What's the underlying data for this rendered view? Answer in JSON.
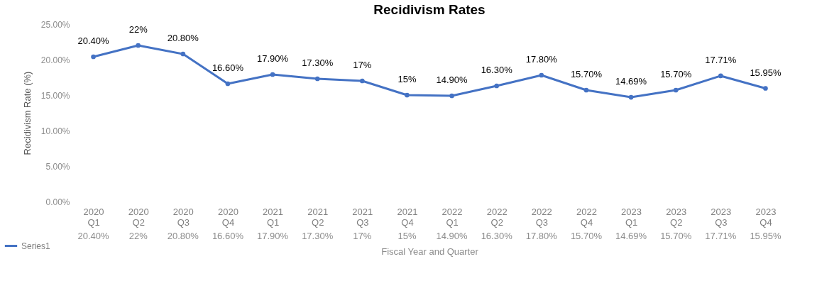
{
  "chart_data": {
    "type": "line",
    "title": "Recidivism Rates",
    "xlabel": "Fiscal Year and Quarter",
    "ylabel": "Recidivism Rate (%)",
    "categories": [
      "2020 Q1",
      "2020 Q2",
      "2020 Q3",
      "2020 Q4",
      "2021 Q1",
      "2021 Q2",
      "2021 Q3",
      "2021 Q4",
      "2022 Q1",
      "2022 Q2",
      "2022 Q3",
      "2022 Q4",
      "2023 Q1",
      "2023 Q2",
      "2023 Q3",
      "2023 Q4"
    ],
    "series": [
      {
        "name": "Series1",
        "color": "#4472c4",
        "values": [
          20.4,
          22,
          20.8,
          16.6,
          17.9,
          17.3,
          17,
          15,
          14.9,
          16.3,
          17.8,
          15.7,
          14.69,
          15.7,
          17.71,
          15.95
        ],
        "value_labels": [
          "20.40%",
          "22%",
          "20.80%",
          "16.60%",
          "17.90%",
          "17.30%",
          "17%",
          "15%",
          "14.90%",
          "16.30%",
          "17.80%",
          "15.70%",
          "14.69%",
          "15.70%",
          "17.71%",
          "15.95%"
        ]
      }
    ],
    "ylim": [
      0,
      25
    ],
    "yticks": [
      {
        "value": 0,
        "label": "0.00%"
      },
      {
        "value": 5,
        "label": "5.00%"
      },
      {
        "value": 10,
        "label": "10.00%"
      },
      {
        "value": 15,
        "label": "15.00%"
      },
      {
        "value": 20,
        "label": "20.00%"
      },
      {
        "value": 25,
        "label": "25.00%"
      }
    ],
    "grid": false,
    "legend": "bottom left",
    "marker": "circle",
    "line_style": "solid"
  }
}
